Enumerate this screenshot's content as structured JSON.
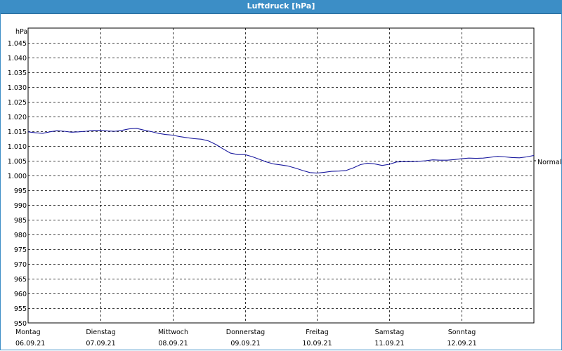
{
  "window": {
    "title": "Luftdruck [hPa]"
  },
  "colors": {
    "titlebar": "#3c8ec6",
    "line": "#1a1a9e",
    "grid": "#000000"
  },
  "chart_data": {
    "type": "line",
    "title": "Luftdruck [hPa]",
    "ylabel": "hPa",
    "ylim": [
      950,
      1050
    ],
    "yticks": [
      "1.045",
      "1.040",
      "1.035",
      "1.030",
      "1.025",
      "1.020",
      "1.015",
      "1.010",
      "1.005",
      "1.000",
      "995",
      "990",
      "985",
      "980",
      "975",
      "970",
      "965",
      "960",
      "955",
      "950"
    ],
    "ytick_values": [
      1045,
      1040,
      1035,
      1030,
      1025,
      1020,
      1015,
      1010,
      1005,
      1000,
      995,
      990,
      985,
      980,
      975,
      970,
      965,
      960,
      955,
      950
    ],
    "x_days": [
      {
        "day": "Montag",
        "date": "06.09.21"
      },
      {
        "day": "Dienstag",
        "date": "07.09.21"
      },
      {
        "day": "Mittwoch",
        "date": "08.09.21"
      },
      {
        "day": "Donnerstag",
        "date": "09.09.21"
      },
      {
        "day": "Freitag",
        "date": "10.09.21"
      },
      {
        "day": "Samstag",
        "date": "11.09.21"
      },
      {
        "day": "Sonntag",
        "date": "12.09.21"
      }
    ],
    "reference": {
      "label": "Normal",
      "value": 1005
    },
    "grid": true,
    "series": [
      {
        "x": [
          0,
          0.1,
          0.2,
          0.3,
          0.4,
          0.5,
          0.6,
          0.7,
          0.8,
          0.9,
          1.0,
          1.1,
          1.2,
          1.3,
          1.4,
          1.5,
          1.6,
          1.7,
          1.8,
          1.9,
          2.0,
          2.1,
          2.2,
          2.3,
          2.4,
          2.5,
          2.6,
          2.7,
          2.8,
          2.9,
          3.0,
          3.1,
          3.2,
          3.3,
          3.4,
          3.5,
          3.6,
          3.7,
          3.8,
          3.9,
          4.0,
          4.1,
          4.2,
          4.3,
          4.4,
          4.5,
          4.6,
          4.7,
          4.8,
          4.9,
          5.0,
          5.1,
          5.2,
          5.3,
          5.4,
          5.5,
          5.6,
          5.7,
          5.8,
          5.9,
          6.0,
          6.1,
          6.2,
          6.3,
          6.4,
          6.5,
          6.6,
          6.7,
          6.8,
          6.9,
          7.0
        ],
        "values": [
          1014.8,
          1014.5,
          1014.3,
          1014.8,
          1015.2,
          1015.0,
          1014.7,
          1014.8,
          1015.0,
          1015.3,
          1015.3,
          1015.1,
          1015.0,
          1015.3,
          1015.8,
          1016.0,
          1015.4,
          1014.9,
          1014.3,
          1013.9,
          1013.7,
          1013.2,
          1012.8,
          1012.5,
          1012.3,
          1011.7,
          1010.5,
          1009.0,
          1007.6,
          1007.1,
          1007.1,
          1006.4,
          1005.5,
          1004.6,
          1003.9,
          1003.6,
          1003.2,
          1002.5,
          1001.7,
          1001.0,
          1000.8,
          1001.1,
          1001.4,
          1001.5,
          1001.7,
          1002.6,
          1003.7,
          1004.2,
          1003.9,
          1003.4,
          1003.8,
          1004.6,
          1004.7,
          1004.7,
          1004.8,
          1005.0,
          1005.3,
          1005.2,
          1005.2,
          1005.4,
          1005.7,
          1005.9,
          1005.8,
          1005.9,
          1006.2,
          1006.5,
          1006.3,
          1006.1,
          1006.0,
          1006.3,
          1006.8
        ]
      }
    ]
  }
}
